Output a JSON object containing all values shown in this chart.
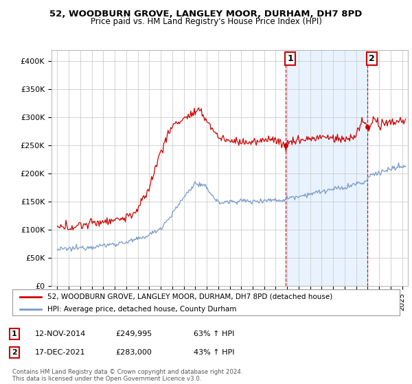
{
  "title": "52, WOODBURN GROVE, LANGLEY MOOR, DURHAM, DH7 8PD",
  "subtitle": "Price paid vs. HM Land Registry's House Price Index (HPI)",
  "legend_line1": "52, WOODBURN GROVE, LANGLEY MOOR, DURHAM, DH7 8PD (detached house)",
  "legend_line2": "HPI: Average price, detached house, County Durham",
  "annotation1_label": "1",
  "annotation1_date": "12-NOV-2014",
  "annotation1_price": "£249,995",
  "annotation1_hpi": "63% ↑ HPI",
  "annotation2_label": "2",
  "annotation2_date": "17-DEC-2021",
  "annotation2_price": "£283,000",
  "annotation2_hpi": "43% ↑ HPI",
  "footer": "Contains HM Land Registry data © Crown copyright and database right 2024.\nThis data is licensed under the Open Government Licence v3.0.",
  "sale1_x": 2014.87,
  "sale1_y": 249995,
  "sale2_x": 2021.96,
  "sale2_y": 283000,
  "xlim": [
    1994.5,
    2025.5
  ],
  "ylim": [
    0,
    420000
  ],
  "yticks": [
    0,
    50000,
    100000,
    150000,
    200000,
    250000,
    300000,
    350000,
    400000
  ],
  "ytick_labels": [
    "£0",
    "£50K",
    "£100K",
    "£150K",
    "£200K",
    "£250K",
    "£300K",
    "£350K",
    "£400K"
  ],
  "xticks": [
    1995,
    1996,
    1997,
    1998,
    1999,
    2000,
    2001,
    2002,
    2003,
    2004,
    2005,
    2006,
    2007,
    2008,
    2009,
    2010,
    2011,
    2012,
    2013,
    2014,
    2015,
    2016,
    2017,
    2018,
    2019,
    2020,
    2021,
    2022,
    2023,
    2024,
    2025
  ],
  "grid_color": "#cccccc",
  "bg_color": "#ffffff",
  "plot_bg_color": "#ffffff",
  "red_color": "#cc0000",
  "blue_color": "#7799cc",
  "shade_color": "#ddeeff",
  "shade_alpha": 0.65
}
